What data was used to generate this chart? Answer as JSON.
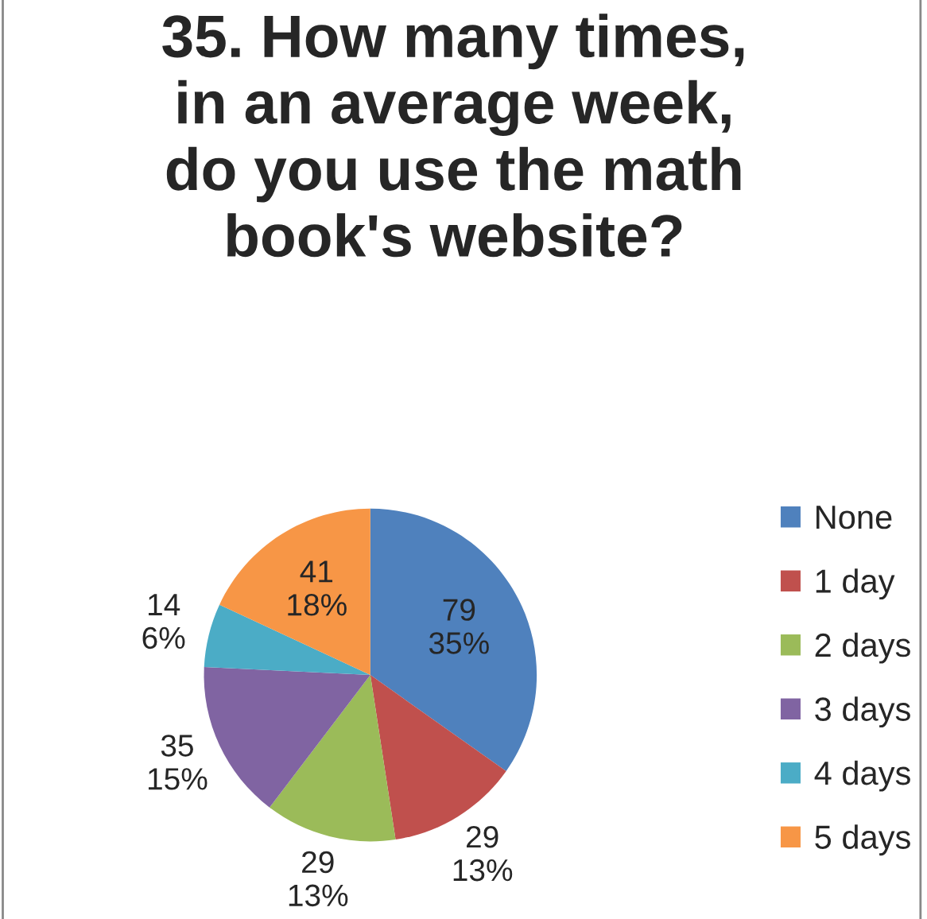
{
  "chart_data": {
    "type": "pie",
    "title": "35. How many times,\nin an average week,\ndo you use the math\nbook's website?",
    "categories": [
      "None",
      "1 day",
      "2 days",
      "3 days",
      "4 days",
      "5 days"
    ],
    "values": [
      79,
      29,
      29,
      35,
      14,
      41
    ],
    "value_labels": [
      "79\n35%",
      "29\n13%",
      "29\n13%",
      "35\n15%",
      "14\n6%",
      "41\n18%"
    ],
    "colors": [
      "#4f81bd",
      "#c0504d",
      "#9bbb59",
      "#8064a2",
      "#4bacc6",
      "#f79646"
    ],
    "legend": "right"
  }
}
